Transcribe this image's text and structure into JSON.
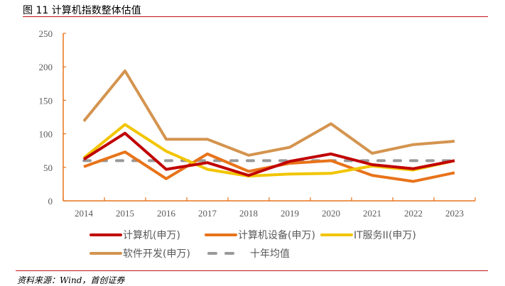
{
  "header": {
    "title": "图 11 计算机指数整体估值"
  },
  "footer": {
    "source": "资料来源：Wind，首创证券"
  },
  "chart_data": {
    "type": "line",
    "title": "计算机指数整体估值",
    "xlabel": "",
    "ylabel": "",
    "categories": [
      "2014",
      "2015",
      "2016",
      "2017",
      "2018",
      "2019",
      "2020",
      "2021",
      "2022",
      "2023"
    ],
    "ylim": [
      0,
      250
    ],
    "yticks": [
      0,
      50,
      100,
      150,
      200,
      250
    ],
    "grid": false,
    "legend_position": "bottom",
    "series": [
      {
        "name": "计算机(申万)",
        "color": "#c00000",
        "dashed": false,
        "values": [
          62,
          101,
          47,
          57,
          38,
          59,
          70,
          54,
          48,
          60
        ]
      },
      {
        "name": "计算机设备(申万)",
        "color": "#e8731a",
        "dashed": false,
        "values": [
          51,
          73,
          33,
          70,
          44,
          56,
          60,
          38,
          29,
          42
        ]
      },
      {
        "name": "IT服务II(申万)",
        "color": "#f2c500",
        "dashed": false,
        "values": [
          64,
          114,
          74,
          47,
          37,
          40,
          41,
          52,
          46,
          60
        ]
      },
      {
        "name": "软件开发(申万)",
        "color": "#d4944f",
        "dashed": false,
        "values": [
          119,
          194,
          92,
          92,
          68,
          80,
          115,
          71,
          84,
          89
        ]
      },
      {
        "name": "十年均值",
        "color": "#999999",
        "dashed": true,
        "values": [
          60,
          60,
          60,
          60,
          60,
          60,
          60,
          60,
          60,
          60
        ]
      }
    ]
  },
  "axis_color": "#e8731a"
}
